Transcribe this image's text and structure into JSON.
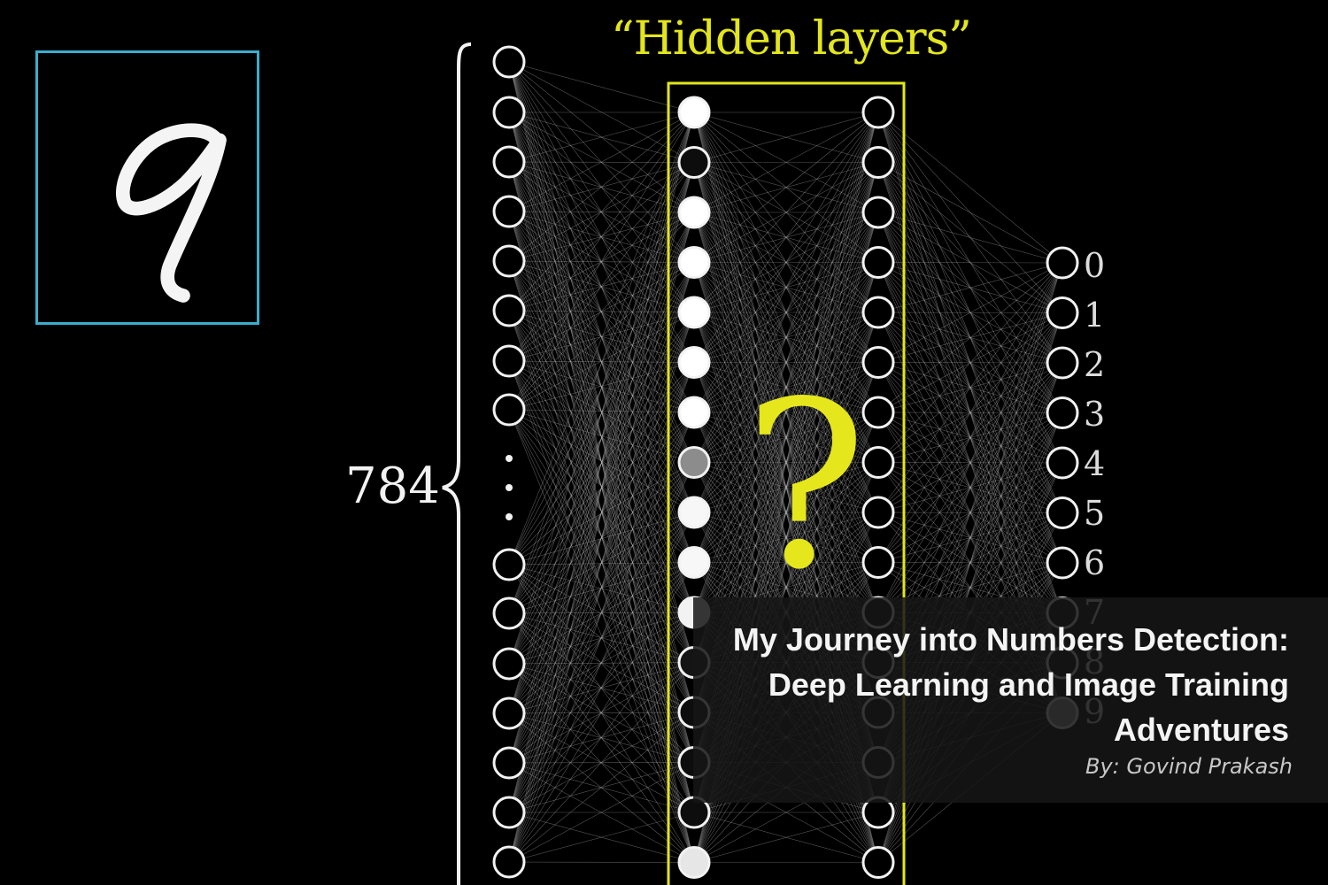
{
  "diagram": {
    "title": "“Hidden layers”",
    "input_count": "784",
    "question_mark": "?",
    "output_labels": [
      "0",
      "1",
      "2",
      "3",
      "4",
      "5",
      "6",
      "7",
      "8",
      "9"
    ],
    "input_layer_ellipsis": "⋮",
    "hidden_layer_1_activations": [
      1.0,
      0.05,
      1.0,
      1.0,
      1.0,
      1.0,
      1.0,
      0.55,
      0.97,
      0.97,
      0.95,
      0.08,
      0.05,
      0.05,
      0.05,
      0.9
    ],
    "output_activations": [
      0,
      0,
      0,
      0,
      0,
      0,
      0,
      0,
      0,
      0.6
    ],
    "colors": {
      "highlight": "#e3e61c",
      "digit_box_border": "#3aaecd",
      "node_stroke": "#f2f2f2",
      "connection": "#bfbfbf"
    }
  },
  "input_image": {
    "digit_shown": "9"
  },
  "caption": {
    "title": "My Journey into Numbers Detection: Deep Learning and Image Training Adventures",
    "author": "By: Govind Prakash"
  }
}
